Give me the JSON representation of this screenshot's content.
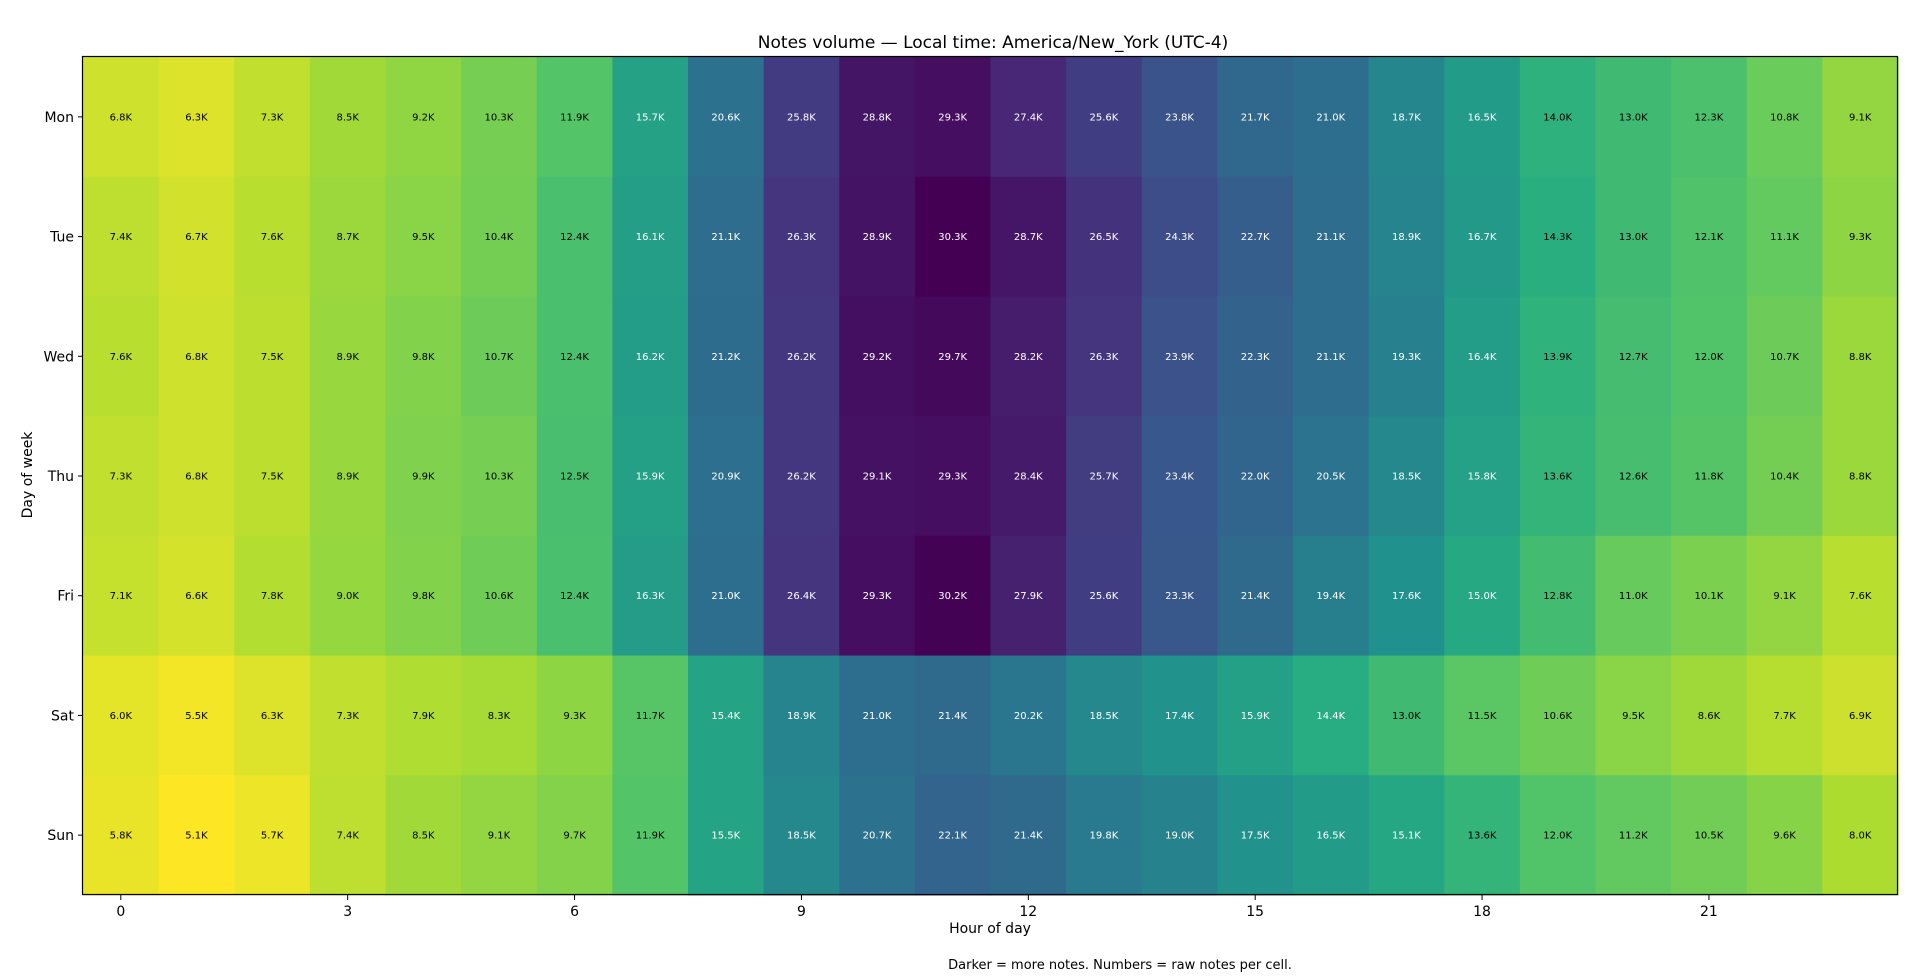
{
  "chart_data": {
    "type": "heatmap",
    "title": "Notes volume — Local time: America/New_York (UTC-4)",
    "xlabel": "Hour of day",
    "ylabel": "Day of week",
    "note": "Darker = more notes. Numbers = raw notes per cell.",
    "colormap": "viridis",
    "reversed": true,
    "x_ticks": [
      "0",
      "3",
      "6",
      "9",
      "12",
      "15",
      "18",
      "21"
    ],
    "x_tick_hours": [
      0,
      3,
      6,
      9,
      12,
      15,
      18,
      21
    ],
    "hours": [
      0,
      1,
      2,
      3,
      4,
      5,
      6,
      7,
      8,
      9,
      10,
      11,
      12,
      13,
      14,
      15,
      16,
      17,
      18,
      19,
      20,
      21,
      22,
      23
    ],
    "days": [
      "Mon",
      "Tue",
      "Wed",
      "Thu",
      "Fri",
      "Sat",
      "Sun"
    ],
    "values": [
      [
        6.8,
        6.3,
        7.3,
        8.5,
        9.2,
        10.3,
        11.9,
        15.7,
        20.6,
        25.8,
        28.8,
        29.3,
        27.4,
        25.6,
        23.8,
        21.7,
        21.0,
        18.7,
        16.5,
        14.0,
        13.0,
        12.3,
        10.8,
        9.1
      ],
      [
        7.4,
        6.7,
        7.6,
        8.7,
        9.5,
        10.4,
        12.4,
        16.1,
        21.1,
        26.3,
        28.9,
        30.3,
        28.7,
        26.5,
        24.3,
        22.7,
        21.1,
        18.9,
        16.7,
        14.3,
        13.0,
        12.1,
        11.1,
        9.3
      ],
      [
        7.6,
        6.8,
        7.5,
        8.9,
        9.8,
        10.7,
        12.4,
        16.2,
        21.2,
        26.2,
        29.2,
        29.7,
        28.2,
        26.3,
        23.9,
        22.3,
        21.1,
        19.3,
        16.4,
        13.9,
        12.7,
        12.0,
        10.7,
        8.8
      ],
      [
        7.3,
        6.8,
        7.5,
        8.9,
        9.9,
        10.3,
        12.5,
        15.9,
        20.9,
        26.2,
        29.1,
        29.3,
        28.4,
        25.7,
        23.4,
        22.0,
        20.5,
        18.5,
        15.8,
        13.6,
        12.6,
        11.8,
        10.4,
        8.8
      ],
      [
        7.1,
        6.6,
        7.8,
        9.0,
        9.8,
        10.6,
        12.4,
        16.3,
        21.0,
        26.4,
        29.3,
        30.2,
        27.9,
        25.6,
        23.3,
        21.4,
        19.4,
        17.6,
        15.0,
        12.8,
        11.0,
        10.1,
        9.1,
        7.6
      ],
      [
        6.0,
        5.5,
        6.3,
        7.3,
        7.9,
        8.3,
        9.3,
        11.7,
        15.4,
        18.9,
        21.0,
        21.4,
        20.2,
        18.5,
        17.4,
        15.9,
        14.4,
        13.0,
        11.5,
        10.6,
        9.5,
        8.6,
        7.7,
        6.9
      ],
      [
        5.8,
        5.1,
        5.7,
        7.4,
        8.5,
        9.1,
        9.7,
        11.9,
        15.5,
        18.5,
        20.7,
        22.1,
        21.4,
        19.8,
        19.0,
        17.5,
        16.5,
        15.1,
        13.6,
        12.0,
        11.2,
        10.5,
        9.6,
        8.0
      ]
    ],
    "value_unit": "K",
    "grid": false,
    "legend": "none"
  }
}
